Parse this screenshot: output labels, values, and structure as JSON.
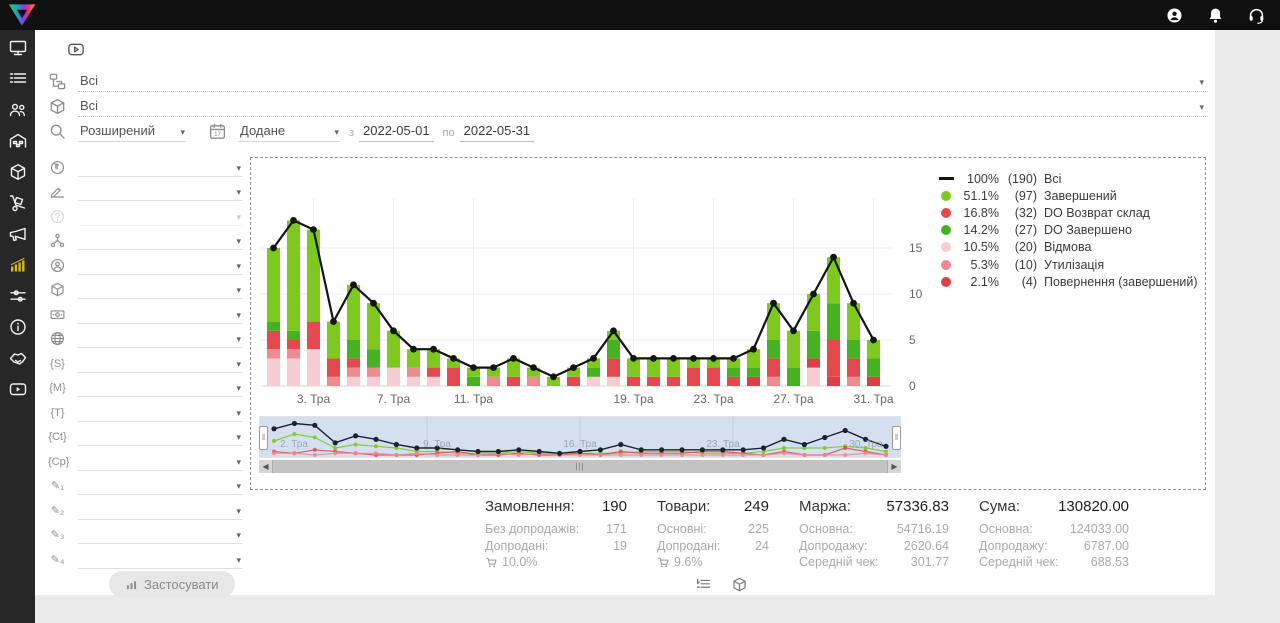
{
  "topbar": {
    "icons": [
      {
        "name": "user-icon"
      },
      {
        "name": "notifications-icon"
      },
      {
        "name": "support-icon"
      }
    ]
  },
  "sidebar": {
    "items": [
      {
        "name": "dashboard",
        "icon": "monitor-icon",
        "active": false
      },
      {
        "name": "orders",
        "icon": "orders-list-icon",
        "active": false
      },
      {
        "name": "clients",
        "icon": "users-icon",
        "active": false
      },
      {
        "name": "warehouse",
        "icon": "warehouse-icon",
        "active": false
      },
      {
        "name": "products",
        "icon": "products-icon",
        "active": false
      },
      {
        "name": "delivery",
        "icon": "delivery-icon",
        "active": false
      },
      {
        "name": "marketing",
        "icon": "marketing-icon",
        "active": false
      },
      {
        "name": "statistics",
        "icon": "statistics-icon",
        "active": true
      },
      {
        "name": "settings",
        "icon": "settings-icon",
        "active": false
      },
      {
        "name": "info",
        "icon": "info-icon",
        "active": false
      },
      {
        "name": "partners",
        "icon": "partners-icon",
        "active": false
      },
      {
        "name": "video",
        "icon": "video-icon",
        "active": false
      }
    ]
  },
  "filters": {
    "group_by": {
      "icon": "sitemap-icon",
      "value": "Всі"
    },
    "product": {
      "icon": "package-icon",
      "value": "Всі"
    },
    "search_mode": {
      "icon": "search-icon",
      "value": "Розширений"
    },
    "date": {
      "icon": "calendar-icon",
      "icon_text": "17",
      "field": "Додане",
      "from_label": "з",
      "from": "2022-05-01",
      "to_label": "по",
      "to": "2022-05-31"
    }
  },
  "filter_panel": {
    "rows": [
      {
        "name": "country",
        "icon": "country-icon"
      },
      {
        "name": "status-notes",
        "icon": "status-icon"
      },
      {
        "name": "unknown",
        "icon": "unknown-icon",
        "disabled": true
      },
      {
        "name": "structure",
        "icon": "structure-icon"
      },
      {
        "name": "manager",
        "icon": "manager-icon"
      },
      {
        "name": "product",
        "icon": "product-icon"
      },
      {
        "name": "payment",
        "icon": "payment-icon"
      },
      {
        "name": "website",
        "icon": "website-icon"
      },
      {
        "name": "utm-source",
        "icon": "utm-source-icon",
        "icon_text": "{S}"
      },
      {
        "name": "utm-medium",
        "icon": "utm-medium-icon",
        "icon_text": "{M}"
      },
      {
        "name": "utm-term",
        "icon": "utm-term-icon",
        "icon_text": "{T}"
      },
      {
        "name": "utm-content",
        "icon": "utm-content-icon",
        "icon_text": "{Ct}"
      },
      {
        "name": "utm-campaign",
        "icon": "utm-campaign-icon",
        "icon_text": "{Cp}"
      },
      {
        "name": "custom-field-1",
        "icon": "custom-field-1-icon",
        "icon_text": "✎₁"
      },
      {
        "name": "custom-field-2",
        "icon": "custom-field-2-icon",
        "icon_text": "✎₂"
      },
      {
        "name": "custom-field-3",
        "icon": "custom-field-3-icon",
        "icon_text": "✎₃"
      },
      {
        "name": "custom-field-4",
        "icon": "custom-field-4-icon",
        "icon_text": "✎₄"
      }
    ],
    "apply_label": "Застосувати"
  },
  "chart_data": {
    "type": "bar",
    "subtype": "stacked-bars-with-total-line",
    "x_unit": "day of May (Тра) 2022",
    "categories": [
      1,
      2,
      3,
      4,
      5,
      6,
      7,
      8,
      9,
      10,
      11,
      12,
      13,
      14,
      15,
      16,
      17,
      18,
      19,
      20,
      21,
      22,
      23,
      24,
      25,
      26,
      27,
      28,
      29,
      30,
      31
    ],
    "x_tick_labels": [
      {
        "day": 3,
        "label": "3. Тра"
      },
      {
        "day": 7,
        "label": "7. Тра"
      },
      {
        "day": 11,
        "label": "11. Тра"
      },
      {
        "day": 19,
        "label": "19. Тра"
      },
      {
        "day": 23,
        "label": "23. Тра"
      },
      {
        "day": 27,
        "label": "27. Тра"
      },
      {
        "day": 31,
        "label": "31. Тра"
      }
    ],
    "y_ticks": [
      0,
      5,
      10,
      15
    ],
    "ylim": [
      0,
      18
    ],
    "grid": true,
    "legend_position": "top-right",
    "line_series": {
      "name": "Всі",
      "color": "#141414",
      "values": [
        15,
        18,
        17,
        7,
        11,
        9,
        6,
        4,
        4,
        3,
        2,
        2,
        3,
        2,
        1,
        2,
        3,
        6,
        3,
        3,
        3,
        3,
        3,
        3,
        4,
        9,
        6,
        10,
        14,
        9,
        5
      ]
    },
    "series": [
      {
        "name": "Відмова",
        "color": "#F5CDD3",
        "values": [
          3,
          3,
          4,
          0,
          1,
          1,
          2,
          1,
          1,
          0,
          0,
          0,
          0,
          0,
          0,
          0,
          1,
          1,
          0,
          0,
          0,
          0,
          0,
          0,
          0,
          0,
          0,
          2,
          0,
          0,
          0
        ]
      },
      {
        "name": "Утилізація",
        "color": "#EE8A90",
        "values": [
          1,
          1,
          0,
          1,
          1,
          1,
          0,
          1,
          0,
          0,
          0,
          1,
          0,
          1,
          0,
          0,
          0,
          0,
          0,
          0,
          0,
          0,
          0,
          0,
          0,
          1,
          0,
          0,
          0,
          1,
          0
        ]
      },
      {
        "name": "Повернення (завершений)",
        "color": "#DC3F46",
        "values": [
          0,
          0,
          0,
          0,
          0,
          0,
          0,
          0,
          0,
          0,
          0,
          0,
          0,
          0,
          0,
          0,
          0,
          0,
          0,
          0,
          0,
          0,
          0,
          0,
          1,
          0,
          0,
          1,
          1,
          0,
          1
        ]
      },
      {
        "name": "DO Возврат склад",
        "color": "#E5494E",
        "values": [
          2,
          1,
          3,
          2,
          1,
          0,
          0,
          0,
          1,
          2,
          0,
          0,
          1,
          0,
          0,
          1,
          0,
          2,
          1,
          1,
          1,
          2,
          2,
          1,
          0,
          2,
          0,
          0,
          4,
          2,
          0
        ]
      },
      {
        "name": "DO Завершено",
        "color": "#46B221",
        "values": [
          1,
          1,
          0,
          0,
          2,
          2,
          0,
          0,
          0,
          0,
          1,
          0,
          0,
          0,
          0,
          0,
          1,
          2,
          0,
          0,
          0,
          0,
          0,
          1,
          1,
          2,
          2,
          3,
          4,
          2,
          2
        ]
      },
      {
        "name": "Завершений",
        "color": "#7DC91D",
        "values": [
          8,
          12,
          10,
          4,
          6,
          5,
          4,
          2,
          2,
          1,
          1,
          1,
          2,
          1,
          1,
          1,
          1,
          1,
          2,
          2,
          2,
          1,
          1,
          1,
          2,
          4,
          4,
          4,
          5,
          4,
          2
        ]
      }
    ],
    "legend": [
      {
        "swatch": "line",
        "color": "#141414",
        "percent": "100%",
        "count": "(190)",
        "label": "Всі"
      },
      {
        "swatch": "dot",
        "color": "#7DC91D",
        "percent": "51.1%",
        "count": "(97)",
        "label": "Завершений"
      },
      {
        "swatch": "dot",
        "color": "#E5494E",
        "percent": "16.8%",
        "count": "(32)",
        "label": "DO Возврат склад"
      },
      {
        "swatch": "dot",
        "color": "#46B221",
        "percent": "14.2%",
        "count": "(27)",
        "label": "DO Завершено"
      },
      {
        "swatch": "dot",
        "color": "#F5CDD3",
        "percent": "10.5%",
        "count": "(20)",
        "label": "Відмова"
      },
      {
        "swatch": "dot",
        "color": "#EE8A90",
        "percent": "5.3%",
        "count": "(10)",
        "label": "Утилізація"
      },
      {
        "swatch": "dot",
        "color": "#DC3F46",
        "percent": "2.1%",
        "count": "(4)",
        "label": "Повернення (завершений)"
      }
    ],
    "navigator": {
      "labels": [
        "2. Тра",
        "9. Тра",
        "16. Тра",
        "23. Тра",
        "30. Тра"
      ],
      "label_days": [
        2,
        9,
        16,
        23,
        30
      ],
      "background": "#d4dfef"
    }
  },
  "stats": {
    "blocks": [
      {
        "title": "Замовлення:",
        "value": "190",
        "rows": [
          [
            "Без допродажів:",
            "171"
          ],
          [
            "Допродані:",
            "19"
          ]
        ],
        "cart": "10.0%"
      },
      {
        "title": "Товари:",
        "value": "249",
        "rows": [
          [
            "Основні:",
            "225"
          ],
          [
            "Допродані:",
            "24"
          ]
        ],
        "cart": "9.6%"
      },
      {
        "title": "Маржа:",
        "value": "57336.83",
        "rows": [
          [
            "Основна:",
            "54716.19"
          ],
          [
            "Допродажу:",
            "2620.64"
          ],
          [
            "Середній чек:",
            "301.77"
          ]
        ],
        "cart": null
      },
      {
        "title": "Сума:",
        "value": "130820.00",
        "rows": [
          [
            "Основна:",
            "124033.00"
          ],
          [
            "Допродажу:",
            "6787.00"
          ],
          [
            "Середній чек:",
            "688.53"
          ]
        ],
        "cart": null
      }
    ]
  },
  "bottom_toggles": [
    {
      "name": "summary-list-icon"
    },
    {
      "name": "products-cube-icon"
    }
  ],
  "colors": {
    "topbar_bg": "#101010",
    "sidebar_bg": "#272727",
    "active_item": "#d3b71c",
    "panel_bg": "#ffffff",
    "page_bg": "#ebebeb",
    "line": "#141414",
    "navigator_bg": "#d4dfef"
  }
}
